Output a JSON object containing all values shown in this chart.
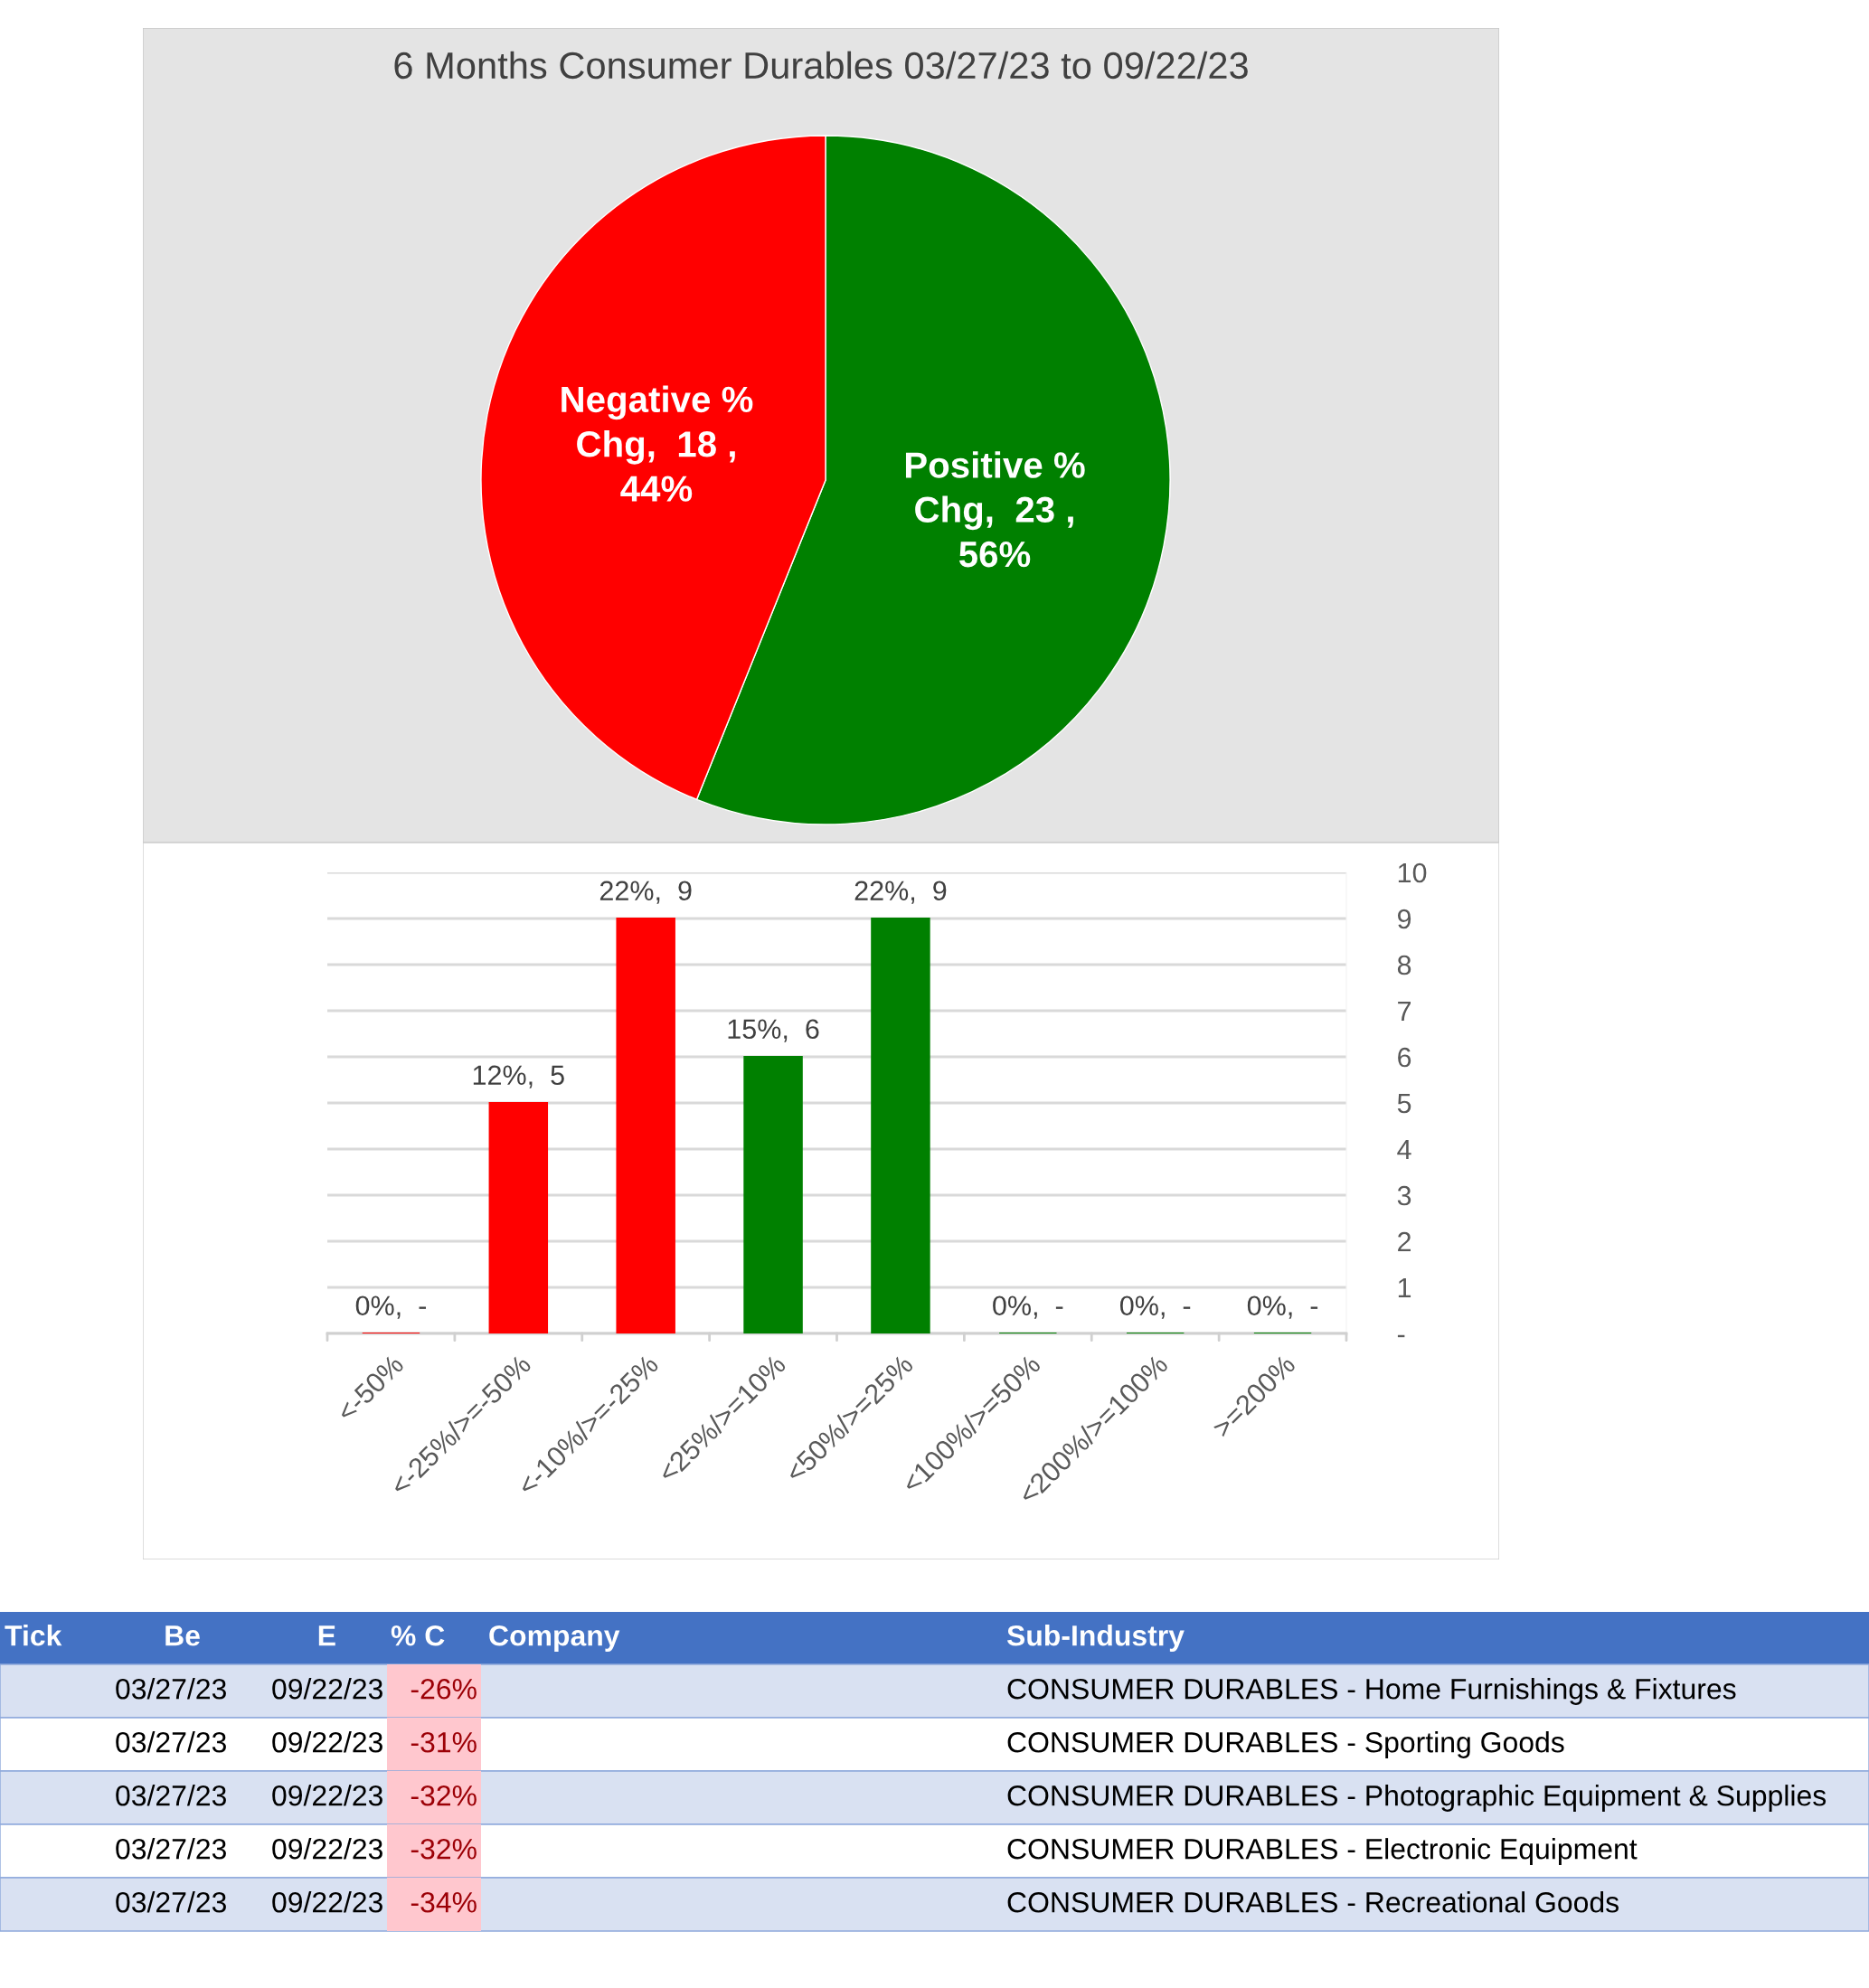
{
  "chart_data": [
    {
      "type": "pie",
      "title": "6 Months Consumer Durables 03/27/23 to 09/22/23",
      "values": [
        23,
        18
      ],
      "colors": [
        "#008000",
        "#ff0000"
      ],
      "value_labels": [
        "Positive %\nChg,  23 ,\n56%",
        "Negative %\nChg,  18 ,\n44%"
      ]
    },
    {
      "type": "bar",
      "categories": [
        "<-50%",
        "<-25%/>=-50%",
        "<-10%/>=-25%",
        "<25%/>=10%",
        "<50%/>=25%",
        "<100%/>=50%",
        "<200%/>=100%",
        ">=200%"
      ],
      "values": [
        0,
        5,
        9,
        6,
        9,
        0,
        0,
        0
      ],
      "colors": [
        "#ff0000",
        "#ff0000",
        "#ff0000",
        "#008000",
        "#008000",
        "#008000",
        "#008000",
        "#008000"
      ],
      "value_labels": [
        "0%,  -",
        "12%,  5",
        "22%,  9",
        "15%,  6",
        "22%,  9",
        "0%,  -",
        "0%,  -",
        "0%,  -"
      ],
      "ylim": [
        0,
        10
      ],
      "yticks": [
        {
          "value": 0,
          "label": "-"
        },
        1,
        2,
        3,
        4,
        5,
        6,
        7,
        8,
        9,
        10
      ],
      "grid": "y"
    },
    {
      "type": "other",
      "categories": [
        "Tick",
        "Be",
        "E",
        "% C",
        "Company",
        "Sub-Industry"
      ],
      "annotations": [
        "03/27/23",
        "09/22/23",
        "-26%",
        "CONSUMER DURABLES - Home Furnishings & Fixtures",
        "03/27/23",
        "09/22/23",
        "-31%",
        "CONSUMER DURABLES - Sporting Goods",
        "03/27/23",
        "09/22/23",
        "-32%",
        "CONSUMER DURABLES - Photographic Equipment & Supplies",
        "03/27/23",
        "09/22/23",
        "-32%",
        "CONSUMER DURABLES - Electronic Equipment",
        "03/27/23",
        "09/22/23",
        "-34%",
        "CONSUMER DURABLES - Recreational Goods"
      ]
    }
  ]
}
